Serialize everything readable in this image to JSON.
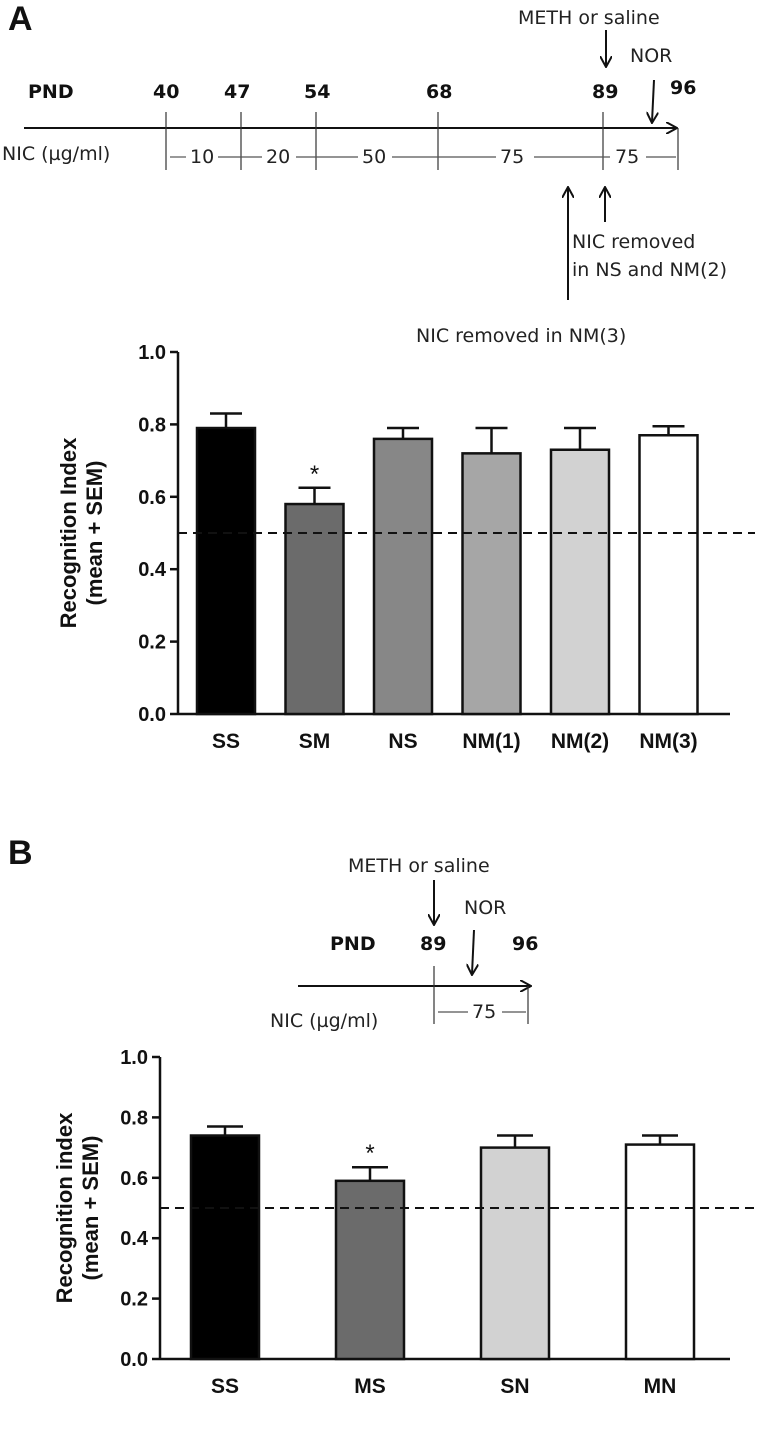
{
  "panels": [
    {
      "letter": "A",
      "timeline": {
        "pnd_label": "PND",
        "nic_label": "NIC (µg/ml)",
        "days": [
          "40",
          "47",
          "54",
          "68",
          "89",
          "96"
        ],
        "doses": [
          "10",
          "20",
          "50",
          "75",
          "75"
        ],
        "meth_label": "METH or saline",
        "nor_label": "NOR",
        "removed_ns_line1": "NIC removed",
        "removed_ns_line2": "in NS and NM(2)",
        "removed_nm3": "NIC removed in NM(3)"
      }
    },
    {
      "letter": "B",
      "timeline": {
        "pnd_label": "PND",
        "nic_label": "NIC (µg/ml)",
        "days": [
          "89",
          "96"
        ],
        "doses": [
          "75"
        ],
        "meth_label": "METH or saline",
        "nor_label": "NOR"
      }
    }
  ],
  "chart_data": [
    {
      "type": "bar",
      "categories": [
        "SS",
        "SM",
        "NS",
        "NM(1)",
        "NM(2)",
        "NM(3)"
      ],
      "values": [
        0.79,
        0.58,
        0.76,
        0.72,
        0.73,
        0.77
      ],
      "errors": [
        0.04,
        0.045,
        0.03,
        0.07,
        0.06,
        0.025
      ],
      "colors": [
        "#000000",
        "#6b6b6b",
        "#878787",
        "#a6a6a6",
        "#d2d2d2",
        "#ffffff"
      ],
      "significance": [
        "",
        "*",
        "",
        "",
        "",
        ""
      ],
      "ylabel_line1": "Recognition Index",
      "ylabel_line2": "(mean + SEM)",
      "ylim": [
        0,
        1.0
      ],
      "yticks": [
        "0.0",
        "0.2",
        "0.4",
        "0.6",
        "0.8",
        "1.0"
      ],
      "reference_line": 0.5
    },
    {
      "type": "bar",
      "categories": [
        "SS",
        "MS",
        "SN",
        "MN"
      ],
      "values": [
        0.74,
        0.59,
        0.7,
        0.71
      ],
      "errors": [
        0.03,
        0.045,
        0.04,
        0.03
      ],
      "colors": [
        "#000000",
        "#6b6b6b",
        "#d2d2d2",
        "#ffffff"
      ],
      "significance": [
        "",
        "*",
        "",
        ""
      ],
      "ylabel_line1": "Recognition index",
      "ylabel_line2": "(mean + SEM)",
      "ylim": [
        0,
        1.0
      ],
      "yticks": [
        "0.0",
        "0.2",
        "0.4",
        "0.6",
        "0.8",
        "1.0"
      ],
      "reference_line": 0.5
    }
  ]
}
